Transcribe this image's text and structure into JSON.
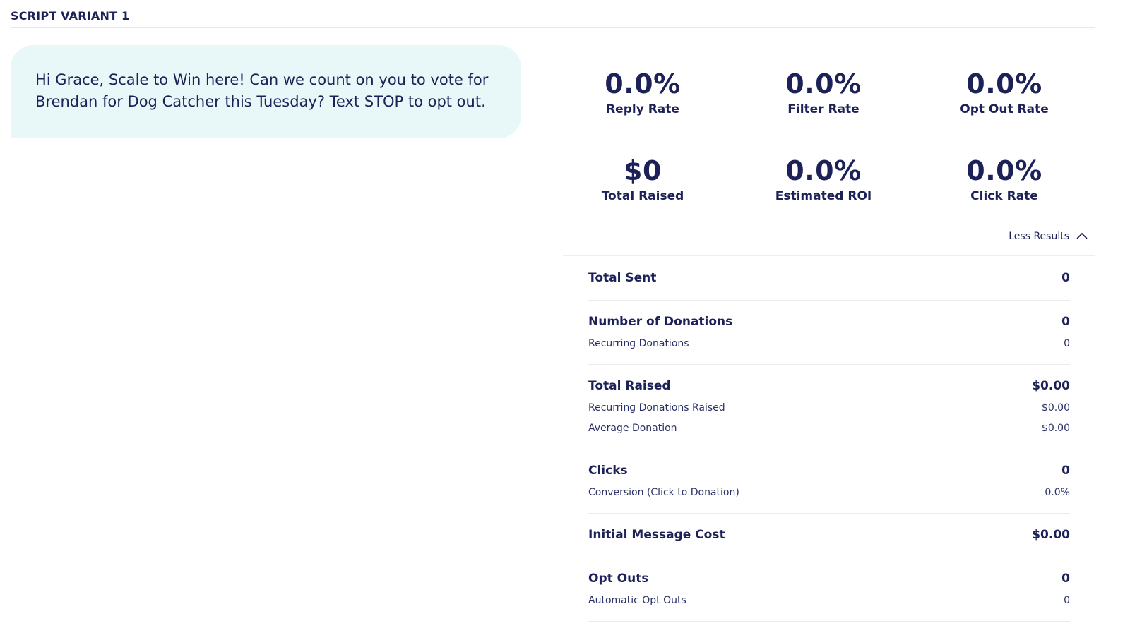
{
  "section": {
    "title": "SCRIPT VARIANT 1"
  },
  "message": {
    "text": "Hi Grace, Scale to Win here! Can we count on you to vote for Brendan for Dog Catcher this Tuesday? Text STOP to opt out."
  },
  "stats": [
    {
      "value": "0.0%",
      "label": "Reply Rate"
    },
    {
      "value": "0.0%",
      "label": "Filter Rate"
    },
    {
      "value": "0.0%",
      "label": "Opt Out Rate"
    },
    {
      "value": "$0",
      "label": "Total Raised"
    },
    {
      "value": "0.0%",
      "label": "Estimated ROI"
    },
    {
      "value": "0.0%",
      "label": "Click Rate"
    }
  ],
  "toggle": {
    "label": "Less Results",
    "icon": "chevron-up-icon"
  },
  "results": {
    "total_sent": {
      "label": "Total Sent",
      "value": "0"
    },
    "donations": {
      "label": "Number of Donations",
      "value": "0",
      "recurring_label": "Recurring Donations",
      "recurring_value": "0"
    },
    "raised": {
      "label": "Total Raised",
      "value": "$0.00",
      "recurring_label": "Recurring Donations Raised",
      "recurring_value": "$0.00",
      "average_label": "Average Donation",
      "average_value": "$0.00"
    },
    "clicks": {
      "label": "Clicks",
      "value": "0",
      "conversion_label": "Conversion (Click to Donation)",
      "conversion_value": "0.0%"
    },
    "initial_cost": {
      "label": "Initial Message Cost",
      "value": "$0.00"
    },
    "opt_outs": {
      "label": "Opt Outs",
      "value": "0",
      "automatic_label": "Automatic Opt Outs",
      "automatic_value": "0"
    }
  },
  "colors": {
    "text": "#1c2257",
    "bubble": "#e8f7f8",
    "divider": "#e9ebef"
  }
}
